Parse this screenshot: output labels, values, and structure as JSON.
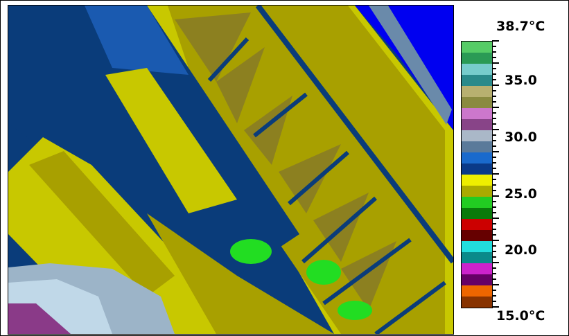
{
  "thermal_image": {
    "description_icon": "thermal-image"
  },
  "scale": {
    "max_label": "38.7°C",
    "min_label": "15.0°C",
    "tick_labels": [
      "35.0",
      "30.0",
      "25.0",
      "20.0"
    ],
    "palette": [
      "#55cc66",
      "#2a9a55",
      "#77cccc",
      "#2a8a8a",
      "#b8b070",
      "#8a8a40",
      "#cc77cc",
      "#884488",
      "#aab8c8",
      "#5a7a9a",
      "#1a6acc",
      "#0a3a88",
      "#eeee00",
      "#aaaa00",
      "#22cc22",
      "#0a7a0a",
      "#cc0000",
      "#660000",
      "#22dddd",
      "#0a8a8a",
      "#cc22cc",
      "#660066",
      "#ee6600",
      "#883300"
    ]
  }
}
